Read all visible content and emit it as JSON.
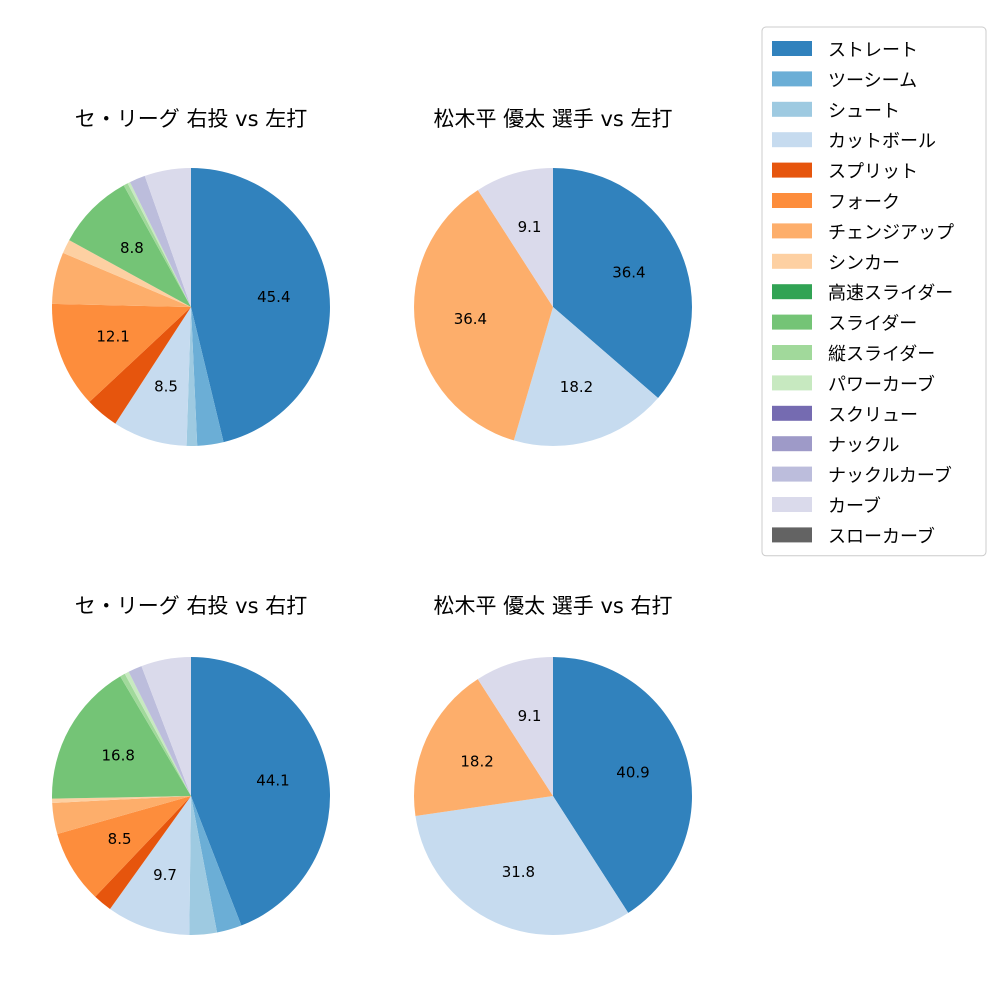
{
  "legend": {
    "placement": "upper-right",
    "entries": [
      {
        "name": "ストレート",
        "color": "#3182bd"
      },
      {
        "name": "ツーシーム",
        "color": "#6baed6"
      },
      {
        "name": "シュート",
        "color": "#9ecae1"
      },
      {
        "name": "カットボール",
        "color": "#c6dbef"
      },
      {
        "name": "スプリット",
        "color": "#e6550d"
      },
      {
        "name": "フォーク",
        "color": "#fd8d3c"
      },
      {
        "name": "チェンジアップ",
        "color": "#fdae6b"
      },
      {
        "name": "シンカー",
        "color": "#fdd0a2"
      },
      {
        "name": "高速スライダー",
        "color": "#31a354"
      },
      {
        "name": "スライダー",
        "color": "#74c476"
      },
      {
        "name": "縦スライダー",
        "color": "#a1d99b"
      },
      {
        "name": "パワーカーブ",
        "color": "#c7e9c0"
      },
      {
        "name": "スクリュー",
        "color": "#756bb1"
      },
      {
        "name": "ナックル",
        "color": "#9e9ac8"
      },
      {
        "name": "ナックルカーブ",
        "color": "#bcbddc"
      },
      {
        "name": "カーブ",
        "color": "#dadaeb"
      },
      {
        "name": "スローカーブ",
        "color": "#636363"
      }
    ]
  },
  "chart_data": [
    {
      "type": "pie",
      "title": "セ・リーグ 右投 vs 左打",
      "start_angle": 90,
      "direction": "clockwise",
      "slices": [
        {
          "label": "ストレート",
          "value": 45.4,
          "show_label": true
        },
        {
          "label": "ツーシーム",
          "value": 3.0,
          "show_label": false
        },
        {
          "label": "シュート",
          "value": 1.2,
          "show_label": false
        },
        {
          "label": "カットボール",
          "value": 8.5,
          "show_label": true
        },
        {
          "label": "スプリット",
          "value": 3.8,
          "show_label": false
        },
        {
          "label": "フォーク",
          "value": 12.1,
          "show_label": true
        },
        {
          "label": "チェンジアップ",
          "value": 5.9,
          "show_label": false
        },
        {
          "label": "シンカー",
          "value": 1.6,
          "show_label": false
        },
        {
          "label": "スライダー",
          "value": 8.8,
          "show_label": true
        },
        {
          "label": "縦スライダー",
          "value": 0.5,
          "show_label": false
        },
        {
          "label": "パワーカーブ",
          "value": 0.3,
          "show_label": false
        },
        {
          "label": "ナックルカーブ",
          "value": 1.8,
          "show_label": false
        },
        {
          "label": "カーブ",
          "value": 5.3,
          "show_label": false
        }
      ]
    },
    {
      "type": "pie",
      "title": "松木平 優太 選手 vs 左打",
      "start_angle": 90,
      "direction": "clockwise",
      "slices": [
        {
          "label": "ストレート",
          "value": 36.4,
          "show_label": true
        },
        {
          "label": "カットボール",
          "value": 18.2,
          "show_label": true
        },
        {
          "label": "チェンジアップ",
          "value": 36.4,
          "show_label": true
        },
        {
          "label": "カーブ",
          "value": 9.1,
          "show_label": true
        }
      ]
    },
    {
      "type": "pie",
      "title": "セ・リーグ 右投 vs 右打",
      "start_angle": 90,
      "direction": "clockwise",
      "slices": [
        {
          "label": "ストレート",
          "value": 44.1,
          "show_label": true
        },
        {
          "label": "ツーシーム",
          "value": 2.9,
          "show_label": false
        },
        {
          "label": "シュート",
          "value": 3.2,
          "show_label": false
        },
        {
          "label": "カットボール",
          "value": 9.7,
          "show_label": true
        },
        {
          "label": "スプリット",
          "value": 2.2,
          "show_label": false
        },
        {
          "label": "フォーク",
          "value": 8.5,
          "show_label": true
        },
        {
          "label": "チェンジアップ",
          "value": 3.6,
          "show_label": false
        },
        {
          "label": "シンカー",
          "value": 0.5,
          "show_label": false
        },
        {
          "label": "スライダー",
          "value": 16.8,
          "show_label": true
        },
        {
          "label": "縦スライダー",
          "value": 0.6,
          "show_label": false
        },
        {
          "label": "パワーカーブ",
          "value": 0.5,
          "show_label": false
        },
        {
          "label": "ナックルカーブ",
          "value": 1.6,
          "show_label": false
        },
        {
          "label": "カーブ",
          "value": 5.8,
          "show_label": false
        }
      ]
    },
    {
      "type": "pie",
      "title": "松木平 優太 選手 vs 右打",
      "start_angle": 90,
      "direction": "clockwise",
      "slices": [
        {
          "label": "ストレート",
          "value": 40.9,
          "show_label": true
        },
        {
          "label": "カットボール",
          "value": 31.8,
          "show_label": true
        },
        {
          "label": "チェンジアップ",
          "value": 18.2,
          "show_label": true
        },
        {
          "label": "カーブ",
          "value": 9.1,
          "show_label": true
        }
      ]
    }
  ]
}
